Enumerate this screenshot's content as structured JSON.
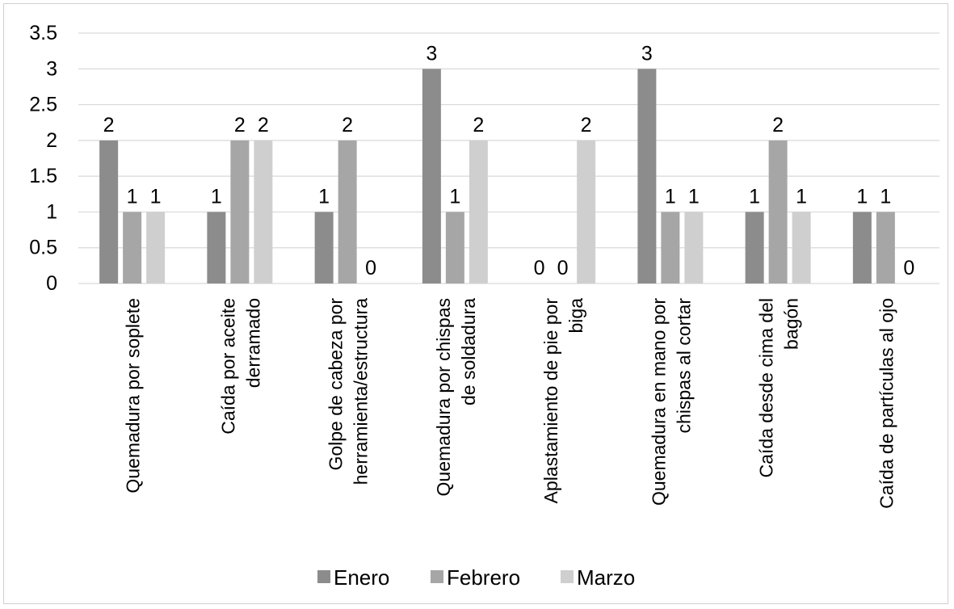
{
  "chart_data": {
    "type": "bar",
    "title": "",
    "xlabel": "",
    "ylabel": "",
    "ylim": [
      0,
      3.5
    ],
    "yticks": [
      "0",
      "0.5",
      "1",
      "1.5",
      "2",
      "2.5",
      "3",
      "3.5"
    ],
    "grid": true,
    "legend_position": "bottom",
    "categories": [
      [
        "Quemadura por soplete"
      ],
      [
        "Caída por aceite",
        "derramado"
      ],
      [
        "Golpe de cabeza por",
        "herramienta/estructura"
      ],
      [
        "Quemadura por chispas",
        "de soldadura"
      ],
      [
        "Aplastamiento de pie por",
        "biga"
      ],
      [
        "Quemadura  en mano por",
        "chispas al cortar"
      ],
      [
        "Caída desde cima del",
        "bagón"
      ],
      [
        "Caída de partículas al ojo"
      ]
    ],
    "series": [
      {
        "name": "Enero",
        "color": "#8c8c8c",
        "values": [
          2,
          1,
          1,
          3,
          0,
          3,
          1,
          1
        ]
      },
      {
        "name": "Febrero",
        "color": "#a6a6a6",
        "values": [
          1,
          2,
          2,
          1,
          0,
          1,
          2,
          1
        ]
      },
      {
        "name": "Marzo",
        "color": "#cfcfcf",
        "values": [
          1,
          2,
          0,
          2,
          2,
          1,
          1,
          0
        ]
      }
    ],
    "gridline_color": "#d9d9d9"
  }
}
